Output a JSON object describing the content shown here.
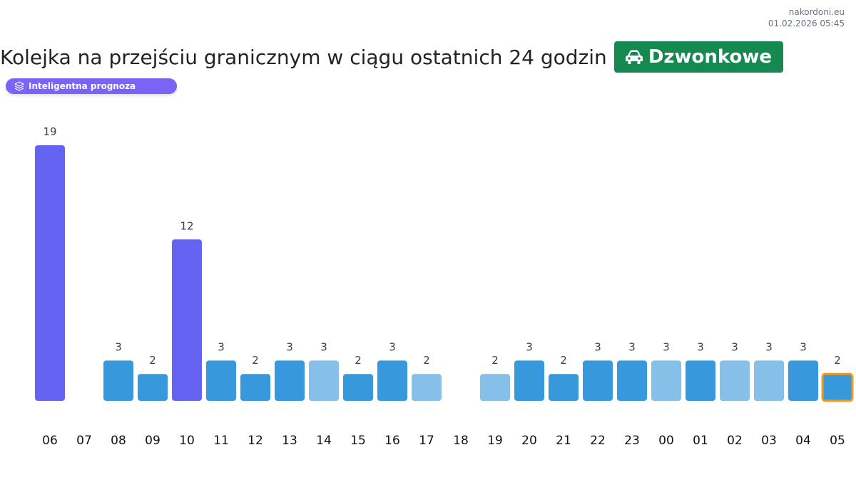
{
  "source": {
    "site": "nakordoni.eu",
    "timestamp": "01.02.2026 05:45"
  },
  "header": {
    "title": "Kolejka na przejściu granicznym w ciągu ostatnich 24 godzin",
    "crossing_name": "Dzwonkowe",
    "crossing_icon": "car-icon",
    "badge_color": "#15894f"
  },
  "prognosis": {
    "label": "Inteligentna prognoza",
    "icon": "layers-icon",
    "color": "#7b63f5"
  },
  "colors": {
    "peak": "#6563f1",
    "normal": "#3799db",
    "light": "#86bfe8",
    "current_outline": "#f19a1c"
  },
  "chart_data": {
    "type": "bar",
    "categories": [
      "06",
      "07",
      "08",
      "09",
      "10",
      "11",
      "12",
      "13",
      "14",
      "15",
      "16",
      "17",
      "18",
      "19",
      "20",
      "21",
      "22",
      "23",
      "00",
      "01",
      "02",
      "03",
      "04",
      "05"
    ],
    "values": [
      19,
      null,
      3,
      2,
      12,
      3,
      2,
      3,
      3,
      2,
      3,
      2,
      null,
      2,
      3,
      2,
      3,
      3,
      3,
      3,
      3,
      3,
      3,
      2
    ],
    "bar_style": [
      "peak",
      "none",
      "normal",
      "normal",
      "peak",
      "normal",
      "normal",
      "normal",
      "light",
      "normal",
      "normal",
      "light",
      "none",
      "light",
      "normal",
      "normal",
      "normal",
      "normal",
      "light",
      "normal",
      "light",
      "light",
      "normal",
      "normal"
    ],
    "current_hour": "05",
    "title": "Kolejka na przejściu granicznym w ciągu ostatnich 24 godzin",
    "xlabel": "",
    "ylabel": "",
    "ylim": [
      0,
      19
    ],
    "grid": false,
    "legend": "none"
  }
}
